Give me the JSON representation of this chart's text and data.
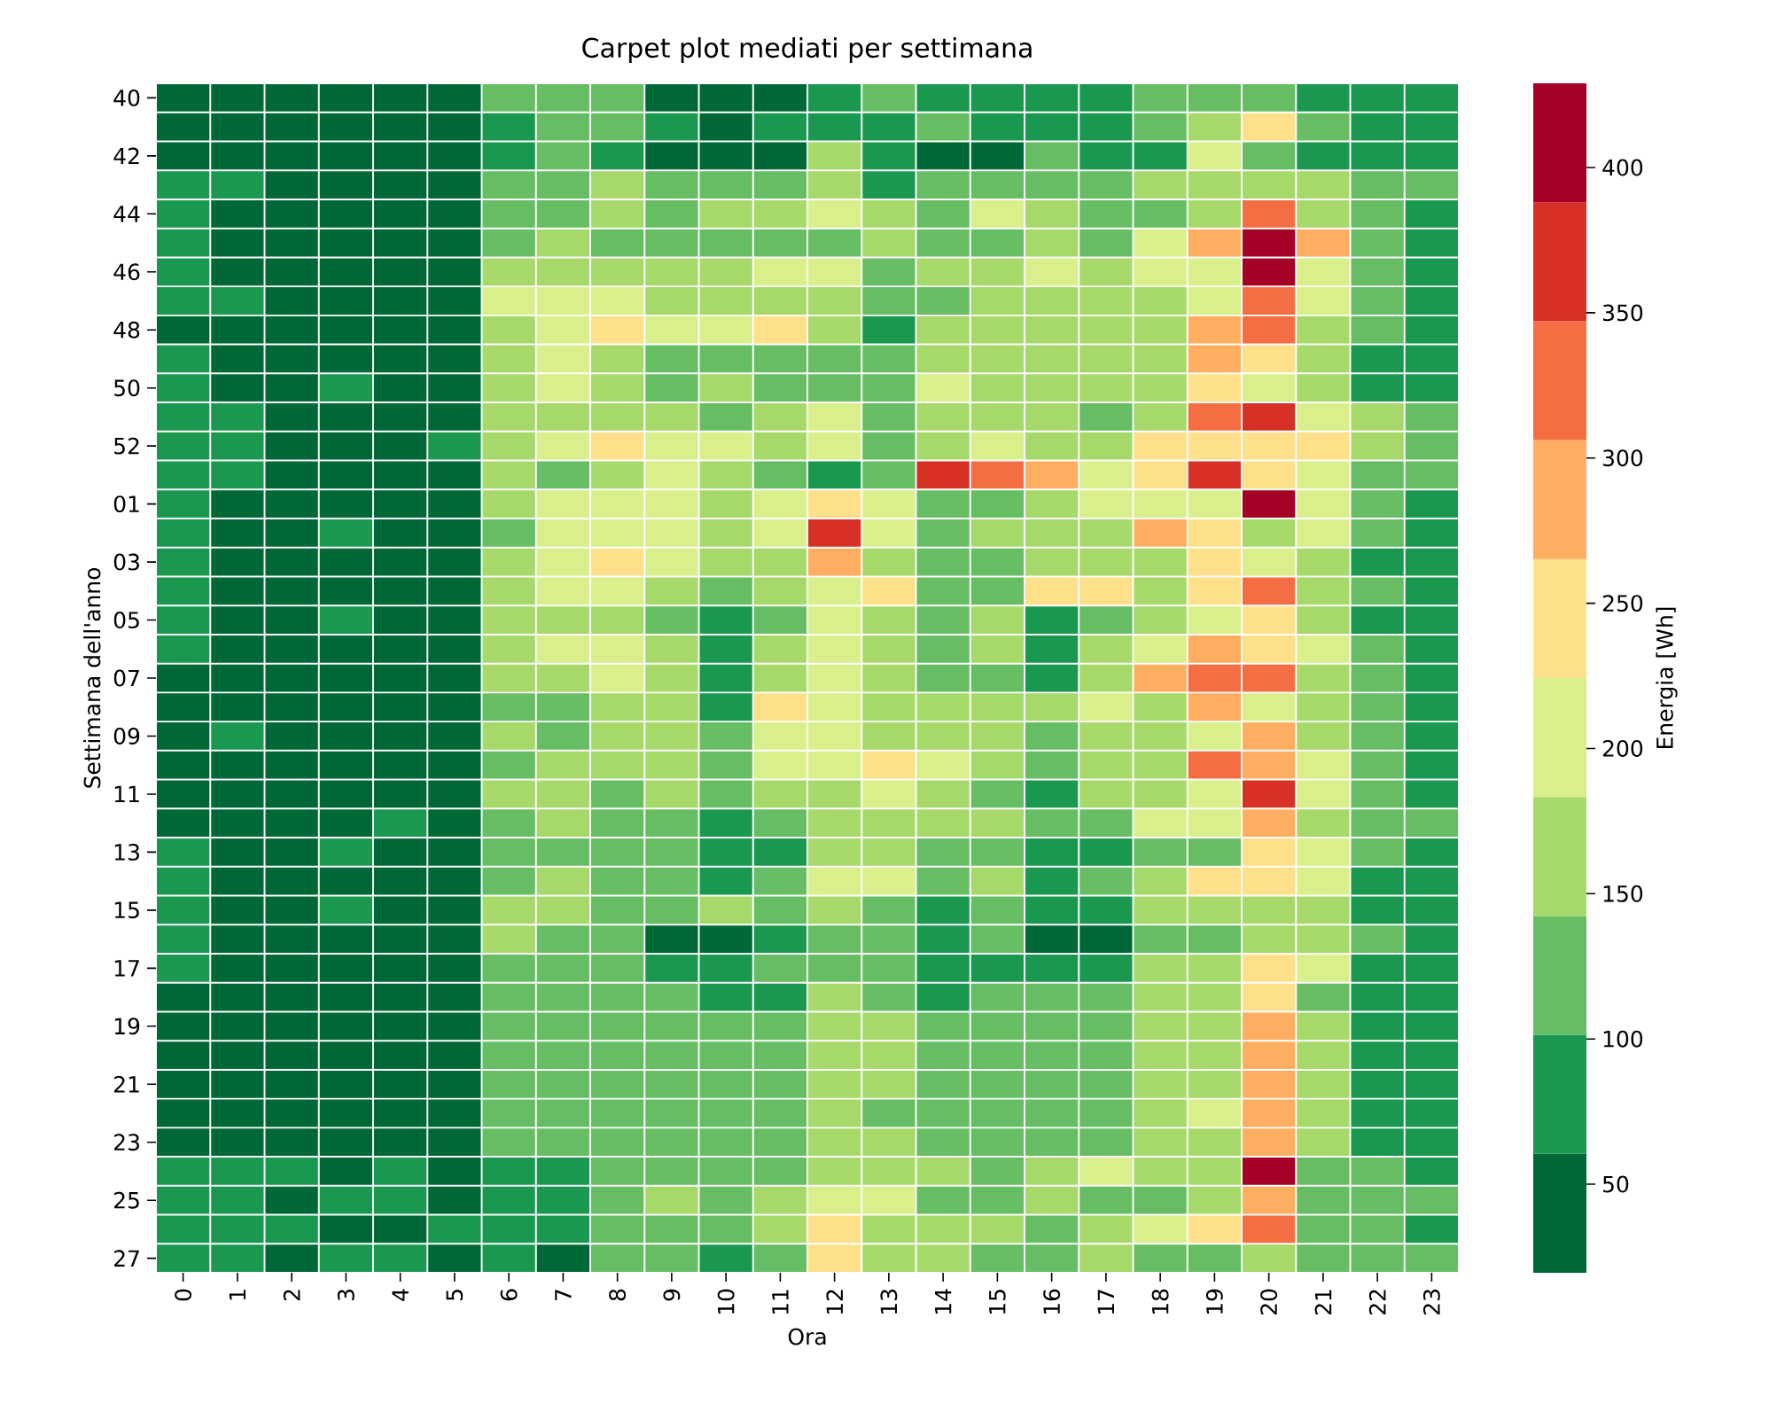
{
  "chart_data": {
    "type": "heatmap",
    "title": "Carpet plot mediati per settimana",
    "xlabel": "Ora",
    "ylabel": "Settimana dell'anno",
    "clabel": "Energia [Wh]",
    "categories": [
      "0",
      "1",
      "2",
      "3",
      "4",
      "5",
      "6",
      "7",
      "8",
      "9",
      "10",
      "11",
      "12",
      "13",
      "14",
      "15",
      "16",
      "17",
      "18",
      "19",
      "20",
      "21",
      "22",
      "23"
    ],
    "y_categories": [
      "40",
      null,
      "42",
      null,
      "44",
      null,
      "46",
      null,
      "48",
      null,
      "50",
      null,
      "52",
      null,
      "01",
      null,
      "03",
      null,
      "05",
      null,
      "07",
      null,
      "09",
      null,
      "11",
      null,
      "13",
      null,
      "15",
      null,
      "17",
      null,
      "19",
      null,
      "21",
      null,
      "23",
      null,
      "25",
      null,
      "27"
    ],
    "clim": [
      19.5,
      429
    ],
    "cticks": [
      50,
      100,
      150,
      200,
      250,
      300,
      350,
      400
    ],
    "cells": [
      [
        40,
        40,
        40,
        40,
        40,
        40,
        122,
        122,
        122,
        40,
        40,
        40,
        81,
        122,
        81,
        81,
        81,
        81,
        122,
        122,
        122,
        81,
        81,
        81
      ],
      [
        40,
        40,
        40,
        40,
        40,
        40,
        81,
        122,
        122,
        81,
        40,
        81,
        81,
        81,
        122,
        81,
        81,
        81,
        122,
        163,
        245,
        122,
        81,
        81
      ],
      [
        40,
        40,
        40,
        40,
        40,
        40,
        81,
        122,
        81,
        40,
        40,
        40,
        163,
        81,
        40,
        40,
        122,
        81,
        81,
        204,
        122,
        81,
        81,
        81
      ],
      [
        81,
        81,
        40,
        40,
        40,
        40,
        122,
        122,
        163,
        122,
        122,
        122,
        163,
        81,
        122,
        122,
        122,
        122,
        163,
        163,
        163,
        163,
        122,
        122
      ],
      [
        81,
        40,
        40,
        40,
        40,
        40,
        122,
        122,
        163,
        122,
        163,
        163,
        204,
        163,
        122,
        204,
        163,
        122,
        122,
        163,
        327,
        163,
        122,
        81
      ],
      [
        81,
        40,
        40,
        40,
        40,
        40,
        122,
        163,
        122,
        122,
        122,
        122,
        122,
        163,
        122,
        122,
        163,
        122,
        204,
        286,
        409,
        286,
        122,
        81
      ],
      [
        81,
        40,
        40,
        40,
        40,
        40,
        163,
        163,
        163,
        163,
        163,
        204,
        204,
        122,
        163,
        163,
        204,
        163,
        204,
        204,
        409,
        204,
        122,
        81
      ],
      [
        81,
        81,
        40,
        40,
        40,
        40,
        204,
        204,
        204,
        163,
        163,
        163,
        163,
        122,
        122,
        163,
        163,
        163,
        163,
        204,
        327,
        204,
        122,
        81
      ],
      [
        40,
        40,
        40,
        40,
        40,
        40,
        163,
        204,
        245,
        204,
        204,
        245,
        163,
        81,
        163,
        163,
        163,
        163,
        163,
        286,
        327,
        163,
        122,
        81
      ],
      [
        81,
        40,
        40,
        40,
        40,
        40,
        163,
        204,
        163,
        122,
        122,
        122,
        122,
        122,
        163,
        163,
        163,
        163,
        163,
        286,
        245,
        163,
        81,
        81
      ],
      [
        81,
        40,
        40,
        81,
        40,
        40,
        163,
        204,
        163,
        122,
        163,
        122,
        122,
        122,
        204,
        163,
        163,
        163,
        163,
        245,
        204,
        163,
        81,
        81
      ],
      [
        81,
        81,
        40,
        40,
        40,
        40,
        163,
        163,
        163,
        163,
        122,
        163,
        204,
        122,
        163,
        163,
        163,
        122,
        163,
        327,
        368,
        204,
        163,
        122
      ],
      [
        81,
        81,
        40,
        40,
        40,
        81,
        163,
        204,
        245,
        204,
        204,
        163,
        204,
        122,
        163,
        204,
        163,
        163,
        245,
        245,
        245,
        245,
        163,
        122
      ],
      [
        81,
        81,
        40,
        40,
        40,
        40,
        163,
        122,
        163,
        204,
        163,
        122,
        81,
        122,
        368,
        327,
        286,
        204,
        245,
        368,
        245,
        204,
        122,
        122
      ],
      [
        81,
        40,
        40,
        40,
        40,
        40,
        163,
        204,
        204,
        204,
        163,
        204,
        245,
        204,
        122,
        122,
        163,
        204,
        204,
        204,
        409,
        204,
        122,
        81
      ],
      [
        81,
        40,
        40,
        81,
        40,
        40,
        122,
        204,
        204,
        204,
        163,
        204,
        368,
        204,
        122,
        163,
        163,
        163,
        286,
        245,
        163,
        204,
        122,
        81
      ],
      [
        81,
        40,
        40,
        40,
        40,
        40,
        163,
        204,
        245,
        204,
        163,
        163,
        286,
        163,
        122,
        122,
        163,
        163,
        163,
        245,
        204,
        163,
        81,
        81
      ],
      [
        81,
        40,
        40,
        40,
        40,
        40,
        163,
        204,
        204,
        163,
        122,
        163,
        204,
        245,
        122,
        122,
        245,
        245,
        163,
        245,
        327,
        163,
        122,
        81
      ],
      [
        81,
        40,
        40,
        81,
        40,
        40,
        163,
        163,
        163,
        122,
        81,
        122,
        204,
        163,
        122,
        163,
        81,
        122,
        163,
        204,
        245,
        163,
        81,
        81
      ],
      [
        81,
        40,
        40,
        40,
        40,
        40,
        163,
        204,
        204,
        163,
        81,
        163,
        204,
        163,
        122,
        163,
        81,
        163,
        204,
        286,
        245,
        204,
        122,
        81
      ],
      [
        40,
        40,
        40,
        40,
        40,
        40,
        163,
        163,
        204,
        163,
        81,
        163,
        204,
        163,
        122,
        122,
        81,
        163,
        286,
        327,
        327,
        163,
        122,
        81
      ],
      [
        40,
        40,
        40,
        40,
        40,
        40,
        122,
        122,
        163,
        163,
        81,
        245,
        204,
        163,
        163,
        163,
        163,
        204,
        163,
        286,
        204,
        163,
        122,
        81
      ],
      [
        40,
        81,
        40,
        40,
        40,
        40,
        163,
        122,
        163,
        163,
        122,
        204,
        204,
        163,
        163,
        163,
        122,
        163,
        163,
        204,
        286,
        163,
        122,
        81
      ],
      [
        40,
        40,
        40,
        40,
        40,
        40,
        122,
        163,
        163,
        163,
        122,
        204,
        204,
        245,
        204,
        163,
        122,
        163,
        163,
        327,
        286,
        204,
        122,
        81
      ],
      [
        40,
        40,
        40,
        40,
        40,
        40,
        163,
        163,
        122,
        163,
        122,
        163,
        163,
        204,
        163,
        122,
        81,
        163,
        163,
        204,
        368,
        204,
        122,
        81
      ],
      [
        40,
        40,
        40,
        40,
        81,
        40,
        122,
        163,
        122,
        122,
        81,
        122,
        163,
        163,
        163,
        163,
        122,
        122,
        204,
        204,
        286,
        163,
        122,
        122
      ],
      [
        81,
        40,
        40,
        81,
        40,
        40,
        122,
        122,
        122,
        122,
        81,
        81,
        163,
        163,
        122,
        122,
        81,
        81,
        122,
        122,
        245,
        204,
        122,
        81
      ],
      [
        81,
        40,
        40,
        40,
        40,
        40,
        122,
        163,
        122,
        122,
        81,
        122,
        204,
        204,
        122,
        163,
        81,
        122,
        163,
        245,
        245,
        204,
        81,
        81
      ],
      [
        81,
        40,
        40,
        81,
        40,
        40,
        163,
        163,
        122,
        122,
        163,
        122,
        163,
        122,
        81,
        122,
        81,
        81,
        163,
        163,
        163,
        163,
        81,
        81
      ],
      [
        81,
        40,
        40,
        40,
        40,
        40,
        163,
        122,
        122,
        40,
        40,
        81,
        122,
        122,
        81,
        122,
        40,
        40,
        122,
        122,
        163,
        163,
        122,
        81
      ],
      [
        81,
        40,
        40,
        40,
        40,
        40,
        122,
        122,
        122,
        81,
        81,
        122,
        122,
        122,
        81,
        81,
        81,
        81,
        163,
        163,
        245,
        204,
        81,
        81
      ],
      [
        40,
        40,
        40,
        40,
        40,
        40,
        122,
        122,
        122,
        122,
        81,
        81,
        163,
        122,
        81,
        122,
        122,
        122,
        163,
        163,
        245,
        122,
        81,
        81
      ],
      [
        40,
        40,
        40,
        40,
        40,
        40,
        122,
        122,
        122,
        122,
        122,
        122,
        163,
        163,
        122,
        122,
        122,
        122,
        163,
        163,
        286,
        163,
        81,
        81
      ],
      [
        40,
        40,
        40,
        40,
        40,
        40,
        122,
        122,
        122,
        122,
        122,
        122,
        163,
        163,
        122,
        122,
        122,
        122,
        163,
        163,
        286,
        163,
        81,
        81
      ],
      [
        40,
        40,
        40,
        40,
        40,
        40,
        122,
        122,
        122,
        122,
        122,
        122,
        163,
        163,
        122,
        122,
        122,
        122,
        163,
        163,
        286,
        163,
        81,
        81
      ],
      [
        40,
        40,
        40,
        40,
        40,
        40,
        122,
        122,
        122,
        122,
        122,
        122,
        163,
        122,
        122,
        122,
        122,
        122,
        163,
        204,
        286,
        163,
        81,
        81
      ],
      [
        40,
        40,
        40,
        40,
        40,
        40,
        122,
        122,
        122,
        122,
        122,
        122,
        163,
        163,
        122,
        122,
        122,
        122,
        163,
        163,
        286,
        163,
        81,
        81
      ],
      [
        81,
        81,
        81,
        40,
        81,
        40,
        81,
        81,
        122,
        122,
        122,
        122,
        163,
        163,
        163,
        122,
        163,
        204,
        163,
        163,
        409,
        122,
        122,
        81
      ],
      [
        81,
        81,
        40,
        81,
        81,
        40,
        81,
        81,
        122,
        163,
        122,
        163,
        204,
        204,
        122,
        122,
        163,
        122,
        122,
        163,
        286,
        122,
        122,
        122
      ],
      [
        81,
        81,
        81,
        40,
        40,
        81,
        81,
        81,
        122,
        122,
        122,
        163,
        245,
        163,
        163,
        163,
        122,
        163,
        204,
        245,
        327,
        122,
        122,
        81
      ],
      [
        81,
        81,
        40,
        81,
        81,
        40,
        81,
        40,
        122,
        122,
        81,
        122,
        245,
        163,
        163,
        122,
        122,
        163,
        122,
        122,
        163,
        122,
        122,
        122
      ]
    ]
  }
}
